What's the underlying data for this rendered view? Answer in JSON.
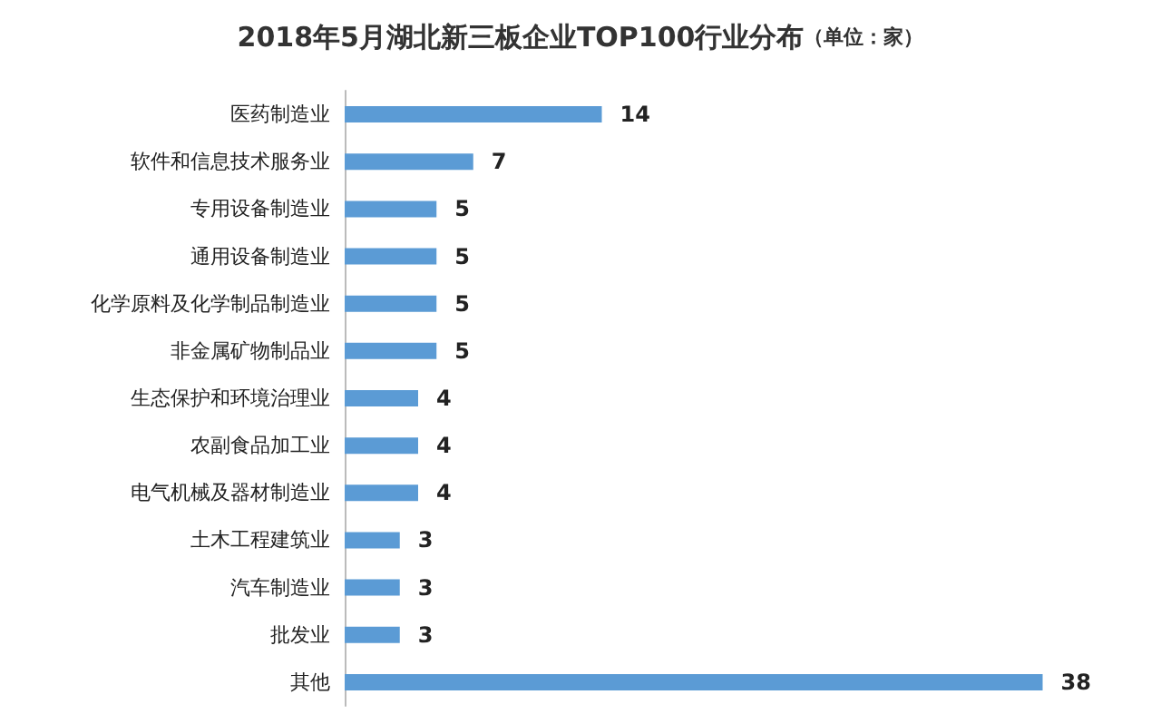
{
  "chart_data": {
    "type": "bar",
    "orientation": "horizontal",
    "title": "2018年5月湖北新三板企业TOP100行业分布",
    "subtitle": "（单位：家）",
    "categories": [
      "医药制造业",
      "软件和信息技术服务业",
      "专用设备制造业",
      "通用设备制造业",
      "化学原料及化学制品制造业",
      "非金属矿物制品业",
      "生态保护和环境治理业",
      "农副食品加工业",
      "电气机械及器材制造业",
      "土木工程建筑业",
      "汽车制造业",
      "批发业",
      "其他"
    ],
    "values": [
      14,
      7,
      5,
      5,
      5,
      5,
      4,
      4,
      4,
      3,
      3,
      3,
      38
    ],
    "color": "#5b9bd5",
    "data_labels": true,
    "tick_labels": "y"
  }
}
